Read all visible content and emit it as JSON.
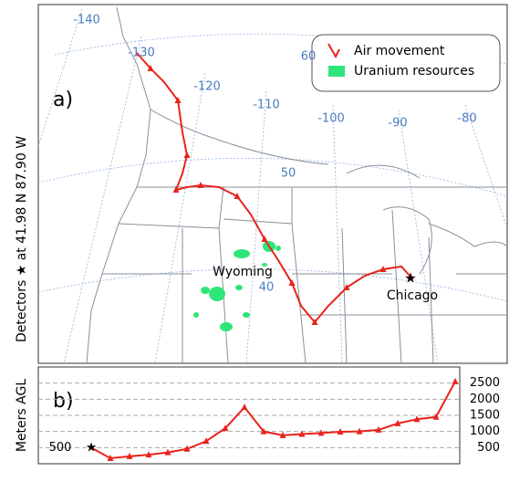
{
  "side_label": "Detectors ★ at 41.98 N 87.90 W",
  "map": {
    "panel_label": "a)",
    "legend": [
      "Air movement",
      "Uranium resources"
    ],
    "places": [
      "Wyoming",
      "Chicago"
    ],
    "lon_labels": [
      -140,
      -130,
      -120,
      -110,
      -100,
      -90,
      -80
    ],
    "lat_labels": [
      60,
      50,
      40
    ]
  },
  "profile": {
    "panel_label": "b)",
    "ylabel": "Meters AGL",
    "ylim": [
      0,
      3000
    ],
    "yticks": [
      500,
      1000,
      1500,
      2000,
      2500
    ],
    "start_label": 500,
    "values": [
      500,
      170,
      230,
      280,
      350,
      460,
      700,
      1100,
      1750,
      1000,
      880,
      920,
      950,
      990,
      1000,
      1050,
      1250,
      1380,
      1450,
      2550
    ]
  }
}
